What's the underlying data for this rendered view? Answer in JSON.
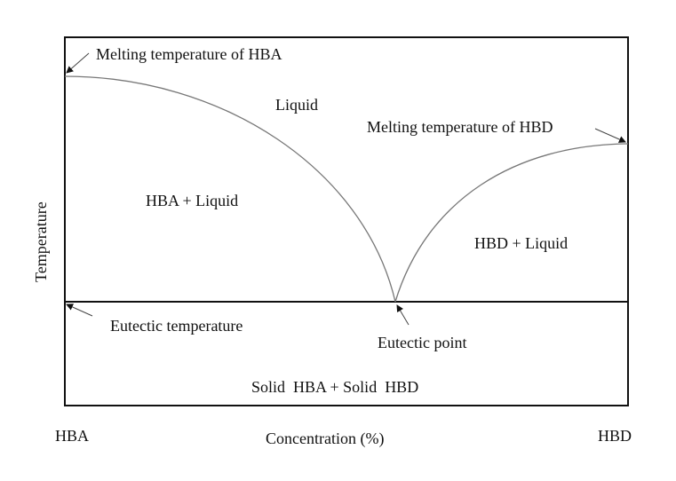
{
  "diagram": {
    "y_axis_label": "Temperature",
    "x_axis_label": "Concentration (%)",
    "x_left_label": "HBA",
    "x_right_label": "HBD",
    "regions": {
      "liquid": "Liquid",
      "hba_liquid": "HBA + Liquid",
      "hbd_liquid": "HBD + Liquid",
      "solid": "Solid  HBA + Solid  HBD"
    },
    "annotations": {
      "melt_hba": "Melting temperature of HBA",
      "melt_hbd": "Melting temperature of HBD",
      "eutectic_temperature": "Eutectic temperature",
      "eutectic_point": "Eutectic point"
    },
    "colors": {
      "frame": "#111111",
      "curve": "#777777"
    }
  }
}
